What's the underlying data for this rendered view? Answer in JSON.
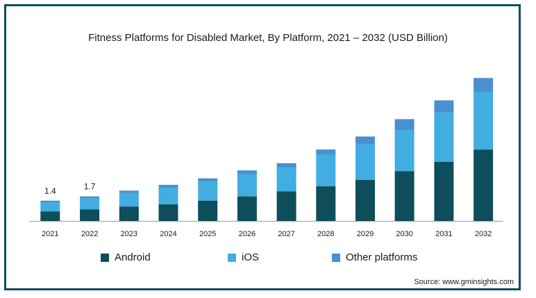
{
  "chart_data": {
    "type": "bar",
    "stacked": true,
    "title": "Fitness Platforms for Disabled Market, By Platform, 2021 – 2032 (USD Billion)",
    "xlabel": "",
    "ylabel": "",
    "ylim": [
      0,
      10.3
    ],
    "grid": false,
    "legend_position": "bottom",
    "categories": [
      "2021",
      "2022",
      "2023",
      "2024",
      "2025",
      "2026",
      "2027",
      "2028",
      "2029",
      "2030",
      "2031",
      "2032"
    ],
    "series": [
      {
        "name": "Android",
        "color": "#0e4e5b",
        "values": [
          0.65,
          0.8,
          1.0,
          1.15,
          1.4,
          1.7,
          2.05,
          2.4,
          2.85,
          3.45,
          4.1,
          4.95
        ]
      },
      {
        "name": "iOS",
        "color": "#41ade1",
        "values": [
          0.65,
          0.75,
          0.95,
          1.15,
          1.35,
          1.55,
          1.65,
          2.2,
          2.45,
          2.85,
          3.4,
          4.0
        ]
      },
      {
        "name": "Other platforms",
        "color": "#4a8fd0",
        "values": [
          0.1,
          0.15,
          0.15,
          0.2,
          0.2,
          0.25,
          0.3,
          0.35,
          0.55,
          0.75,
          0.85,
          0.95
        ]
      }
    ],
    "data_labels": [
      {
        "category": "2021",
        "text": "1.4"
      },
      {
        "category": "2022",
        "text": "1.7"
      }
    ]
  },
  "source": "Source: www.gminsights.com"
}
